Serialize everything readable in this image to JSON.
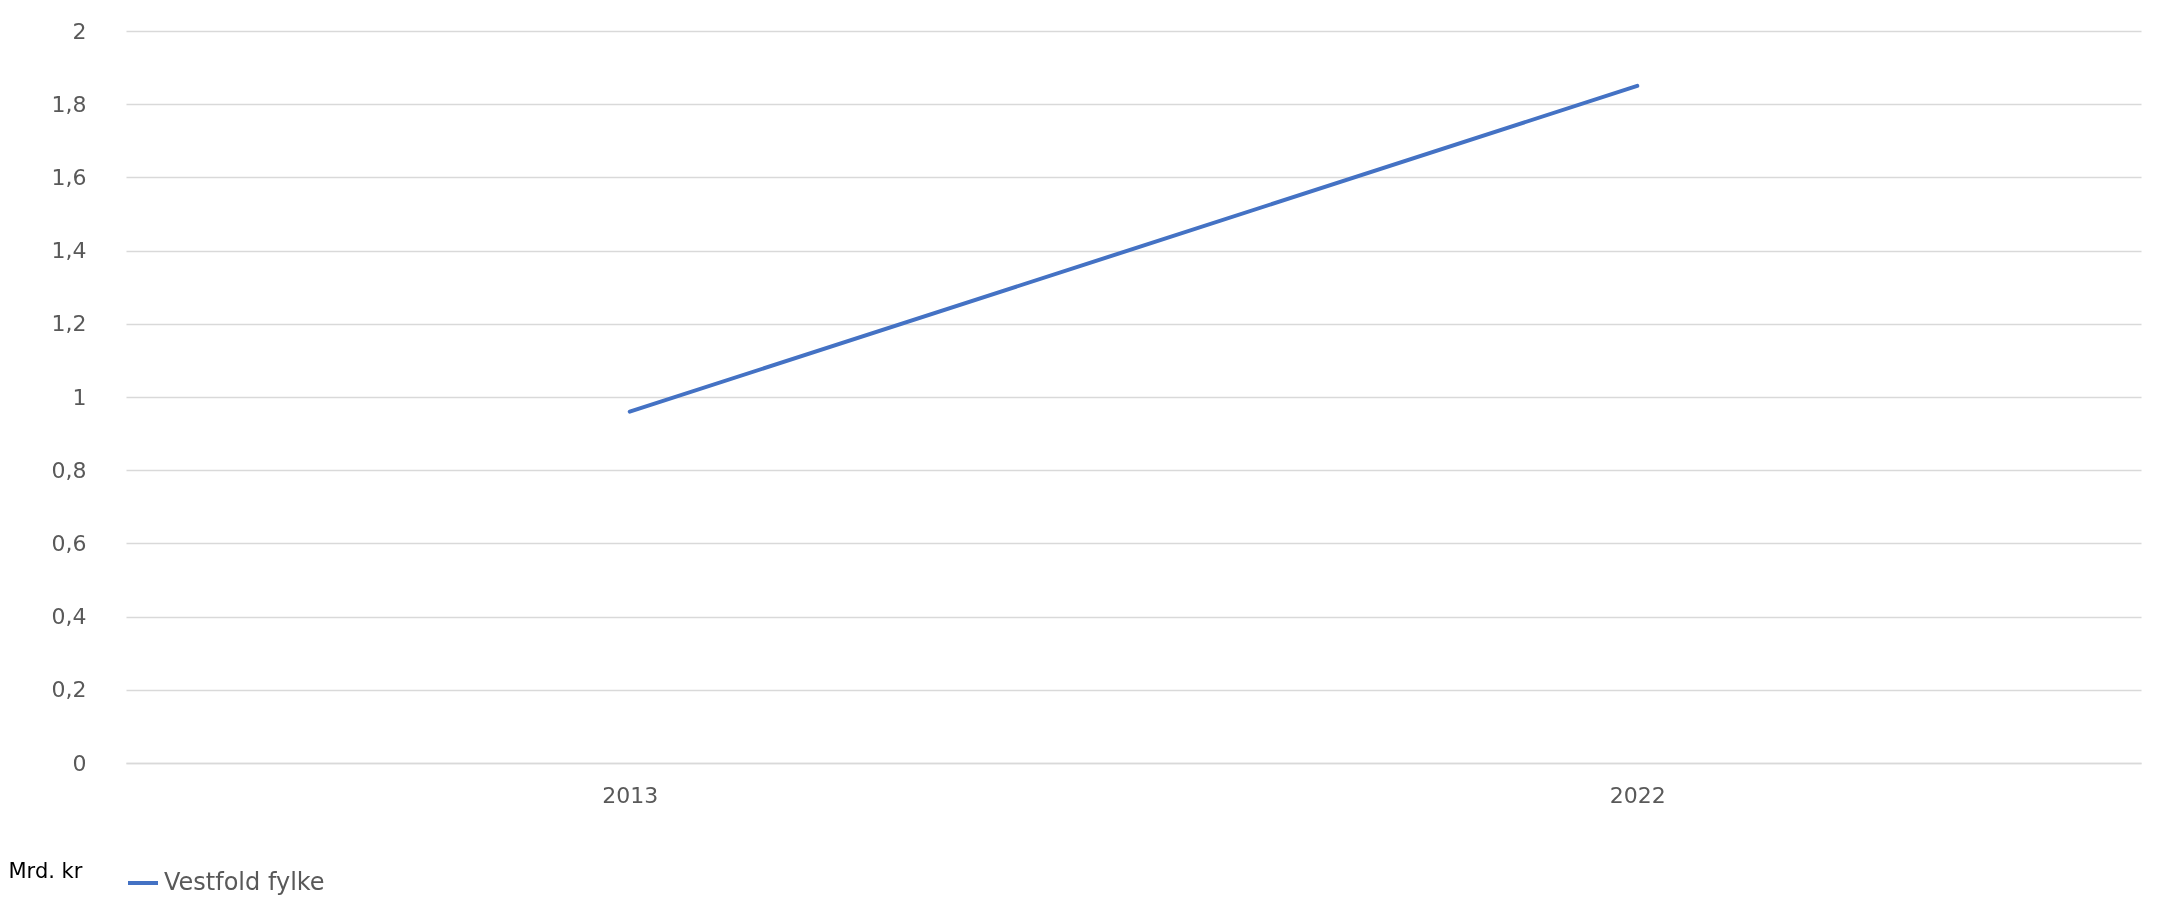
{
  "chart_data": {
    "type": "line",
    "ylabel": "Mrd. kr",
    "categories": [
      "2013",
      "2022"
    ],
    "series": [
      {
        "name": "Vestfold fylke",
        "color": "#4472c4",
        "values": [
          0.96,
          1.85
        ]
      }
    ],
    "ylim": [
      0,
      2
    ],
    "yticks": [
      0,
      {
        "value": 0.2,
        "label": "0,2"
      },
      {
        "value": 0.4,
        "label": "0,4"
      },
      {
        "value": 0.6,
        "label": "0,6"
      },
      {
        "value": 0.8,
        "label": "0,8"
      },
      1,
      {
        "value": 1.2,
        "label": "1,2"
      },
      {
        "value": 1.4,
        "label": "1,4"
      },
      {
        "value": 1.6,
        "label": "1,6"
      },
      {
        "value": 1.8,
        "label": "1,8"
      },
      2
    ],
    "grid": "y",
    "legend": "bottom",
    "marker": "none",
    "line_style": "solid"
  }
}
